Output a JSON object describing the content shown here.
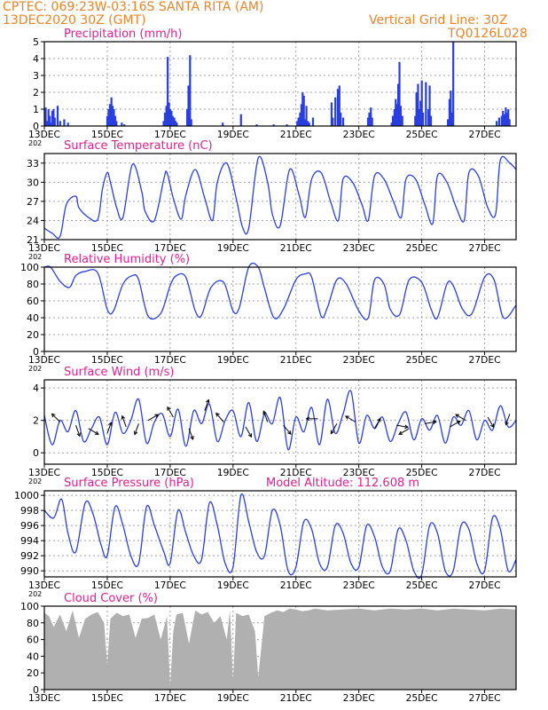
{
  "header": {
    "line1_left": "CPTEC:   069:23W-03:16S   SANTA RITA (AM)",
    "line2_left": "13DEC2020 30Z (GMT)",
    "line1_right": "Vertical Grid Line: 30Z",
    "line2_right": "TQ0126L028"
  },
  "colors": {
    "series": "#2a3fe0",
    "title": "#e0208f",
    "header": "#e8842a",
    "cloud": "#b0b0b0",
    "grid": "#a0a0a0"
  },
  "x_ticks": [
    "13DEC",
    "15DEC",
    "17DEC",
    "19DEC",
    "21DEC",
    "23DEC",
    "25DEC",
    "27DEC"
  ],
  "x_tick_days": [
    0,
    2,
    4,
    6,
    8,
    10,
    12,
    14
  ],
  "x_range_days": [
    0,
    15
  ],
  "year_label": "202",
  "chart_data": [
    {
      "id": "precip",
      "type": "bar",
      "title": "Precipitation (mm/h)",
      "ylim": [
        0,
        5
      ],
      "yticks": [
        0,
        1,
        2,
        3,
        4,
        5
      ],
      "grid": true,
      "x": [
        0.04,
        0.08,
        0.13,
        0.17,
        0.21,
        0.25,
        0.29,
        0.33,
        0.42,
        0.5,
        0.63,
        0.75,
        2.0,
        2.04,
        2.08,
        2.13,
        2.17,
        2.21,
        2.25,
        2.29,
        2.46,
        2.54,
        3.79,
        3.83,
        3.88,
        3.92,
        3.96,
        4.0,
        4.04,
        4.08,
        4.13,
        4.17,
        4.21,
        4.54,
        4.58,
        4.63,
        4.67,
        5.67,
        6.25,
        6.75,
        7.29,
        7.71,
        8.04,
        8.08,
        8.13,
        8.17,
        8.21,
        8.25,
        8.29,
        8.33,
        8.38,
        8.42,
        8.54,
        9.13,
        9.17,
        9.25,
        9.33,
        9.38,
        9.42,
        9.5,
        10.29,
        10.33,
        10.38,
        10.42,
        11.04,
        11.08,
        11.13,
        11.17,
        11.21,
        11.25,
        11.29,
        11.33,
        11.38,
        11.79,
        11.83,
        11.88,
        11.92,
        11.96,
        12.0,
        12.04,
        12.13,
        12.21,
        12.25,
        12.29,
        12.83,
        12.88,
        12.92,
        12.96,
        13.0,
        14.38,
        14.46,
        14.54,
        14.58,
        14.63,
        14.67,
        14.71,
        14.75,
        14.79
      ],
      "values": [
        1.1,
        0.3,
        1.0,
        0.6,
        0.2,
        0.9,
        1.0,
        0.5,
        1.2,
        0.3,
        0.4,
        0.2,
        0.6,
        1.0,
        1.3,
        1.7,
        1.2,
        1.0,
        0.6,
        0.3,
        0.2,
        0.1,
        0.3,
        0.8,
        1.2,
        4.1,
        1.4,
        1.0,
        0.9,
        0.6,
        0.5,
        0.3,
        0.2,
        1.0,
        2.4,
        4.2,
        0.4,
        0.2,
        0.7,
        0.1,
        0.1,
        0.1,
        0.3,
        0.5,
        0.8,
        1.3,
        2.0,
        1.8,
        0.4,
        1.2,
        0.3,
        0.2,
        0.5,
        1.4,
        0.5,
        1.7,
        2.2,
        2.4,
        0.8,
        0.5,
        0.5,
        0.8,
        1.1,
        0.5,
        0.2,
        0.6,
        1.0,
        1.6,
        1.3,
        2.5,
        3.8,
        1.2,
        0.6,
        0.6,
        2.0,
        2.5,
        1.0,
        1.5,
        2.7,
        0.8,
        2.6,
        1.0,
        2.4,
        0.6,
        0.4,
        1.6,
        2.1,
        0.8,
        5.1,
        0.3,
        0.5,
        0.6,
        0.9,
        0.7,
        1.1,
        0.8,
        1.0,
        0.4
      ]
    },
    {
      "id": "temp",
      "type": "line",
      "title": "Surface Temperature (nC)",
      "ylim": [
        21,
        34.5
      ],
      "yticks": [
        21,
        24,
        27,
        30,
        33
      ],
      "grid": true,
      "x": [
        0,
        0.25,
        0.5,
        0.7,
        1.0,
        1.1,
        1.4,
        1.7,
        1.85,
        2.0,
        2.1,
        2.3,
        2.5,
        2.8,
        3.1,
        3.2,
        3.5,
        3.8,
        3.9,
        4.1,
        4.35,
        4.5,
        4.8,
        5.1,
        5.35,
        5.5,
        5.8,
        6.1,
        6.3,
        6.5,
        6.8,
        7.1,
        7.25,
        7.5,
        7.8,
        8.1,
        8.3,
        8.5,
        8.8,
        9.1,
        9.35,
        9.5,
        9.8,
        10.1,
        10.3,
        10.5,
        10.8,
        11.1,
        11.35,
        11.5,
        11.8,
        12.1,
        12.35,
        12.5,
        12.8,
        13.1,
        13.35,
        13.5,
        13.8,
        14.1,
        14.35,
        14.5,
        14.8,
        15.0
      ],
      "values": [
        22.8,
        22.0,
        21.5,
        26.5,
        27.8,
        26.0,
        24.5,
        24.2,
        29.0,
        31.5,
        30.0,
        26.0,
        24.5,
        32.8,
        28.5,
        25.5,
        24.0,
        30.5,
        31.5,
        27.5,
        24.2,
        28.0,
        32.0,
        27.5,
        24.0,
        30.0,
        33.0,
        27.5,
        23.0,
        22.8,
        33.8,
        30.0,
        25.0,
        23.2,
        32.0,
        28.0,
        24.5,
        30.5,
        31.5,
        27.0,
        24.0,
        30.5,
        30.0,
        26.5,
        24.0,
        31.0,
        30.5,
        27.0,
        24.5,
        30.5,
        30.5,
        26.5,
        23.5,
        31.0,
        30.0,
        26.0,
        24.0,
        31.5,
        31.0,
        26.0,
        25.0,
        33.5,
        33.0,
        32.0
      ]
    },
    {
      "id": "rh",
      "type": "line",
      "title": "Relative Humidity (%)",
      "ylim": [
        0,
        100
      ],
      "yticks": [
        0,
        20,
        40,
        60,
        80,
        100
      ],
      "grid": true,
      "x": [
        0,
        0.2,
        0.5,
        0.8,
        1.0,
        1.3,
        1.7,
        2.0,
        2.2,
        2.5,
        2.8,
        3.0,
        3.3,
        3.7,
        4.0,
        4.2,
        4.5,
        4.8,
        5.0,
        5.3,
        5.7,
        6.0,
        6.2,
        6.5,
        6.8,
        7.0,
        7.3,
        7.6,
        8.0,
        8.3,
        8.5,
        8.8,
        9.0,
        9.3,
        9.6,
        10.0,
        10.3,
        10.5,
        10.8,
        11.0,
        11.3,
        11.6,
        12.0,
        12.3,
        12.5,
        12.8,
        13.0,
        13.3,
        13.6,
        14.0,
        14.3,
        14.6,
        15.0
      ],
      "values": [
        100,
        100,
        83,
        76,
        90,
        95,
        93,
        50,
        48,
        80,
        90,
        85,
        42,
        45,
        78,
        90,
        88,
        48,
        43,
        76,
        82,
        48,
        52,
        100,
        100,
        75,
        40,
        50,
        85,
        92,
        88,
        42,
        52,
        85,
        80,
        48,
        40,
        85,
        80,
        50,
        44,
        85,
        82,
        50,
        40,
        80,
        78,
        50,
        45,
        88,
        85,
        40,
        55
      ]
    },
    {
      "id": "wind",
      "type": "line",
      "title": "Surface Wind (m/s)",
      "ylim": [
        -0.7,
        4.5
      ],
      "yticks": [
        0,
        2,
        4
      ],
      "grid": true,
      "x": [
        0,
        0.25,
        0.5,
        0.75,
        1.0,
        1.25,
        1.5,
        1.75,
        2.0,
        2.25,
        2.5,
        2.75,
        3.0,
        3.25,
        3.5,
        3.75,
        4.0,
        4.25,
        4.5,
        4.75,
        5.0,
        5.25,
        5.5,
        5.75,
        6.0,
        6.25,
        6.5,
        6.75,
        7.0,
        7.25,
        7.5,
        7.75,
        8.0,
        8.25,
        8.5,
        8.75,
        9.0,
        9.25,
        9.5,
        9.75,
        10.0,
        10.25,
        10.5,
        10.75,
        11.0,
        11.25,
        11.5,
        11.75,
        12.0,
        12.25,
        12.5,
        12.75,
        13.0,
        13.25,
        13.5,
        13.75,
        14.0,
        14.25,
        14.5,
        14.75,
        15.0
      ],
      "values": [
        2.3,
        0.5,
        2.0,
        1.3,
        2.6,
        0.7,
        1.5,
        2.2,
        0.5,
        2.5,
        1.2,
        2.0,
        3.3,
        0.6,
        1.9,
        2.4,
        1.0,
        2.7,
        0.4,
        2.6,
        1.8,
        3.0,
        0.7,
        2.0,
        2.6,
        1.0,
        3.1,
        0.7,
        2.4,
        1.8,
        3.4,
        0.2,
        2.2,
        1.3,
        2.8,
        0.5,
        3.3,
        1.2,
        2.4,
        3.8,
        0.6,
        2.3,
        1.5,
        2.2,
        0.7,
        1.8,
        2.5,
        0.8,
        2.1,
        1.4,
        2.3,
        0.6,
        2.2,
        1.7,
        2.6,
        0.8,
        2.0,
        1.4,
        2.9,
        1.6,
        2.0
      ],
      "arrows": [
        {
          "x": 0.5,
          "y": 1.9,
          "dir": 315
        },
        {
          "x": 1.0,
          "y": 1.7,
          "dir": 160
        },
        {
          "x": 1.4,
          "y": 1.5,
          "dir": 120
        },
        {
          "x": 2.0,
          "y": 1.2,
          "dir": 20
        },
        {
          "x": 2.6,
          "y": 1.6,
          "dir": 340
        },
        {
          "x": 3.0,
          "y": 1.8,
          "dir": 200
        },
        {
          "x": 3.3,
          "y": 2.0,
          "dir": 60
        },
        {
          "x": 4.1,
          "y": 2.2,
          "dir": 330
        },
        {
          "x": 4.6,
          "y": 1.5,
          "dir": 160
        },
        {
          "x": 5.1,
          "y": 2.6,
          "dir": 20
        },
        {
          "x": 5.7,
          "y": 1.9,
          "dir": 320
        },
        {
          "x": 6.4,
          "y": 1.6,
          "dir": 150
        },
        {
          "x": 7.1,
          "y": 1.9,
          "dir": 340
        },
        {
          "x": 7.6,
          "y": 1.7,
          "dir": 140
        },
        {
          "x": 8.7,
          "y": 2.1,
          "dir": 270
        },
        {
          "x": 9.3,
          "y": 1.8,
          "dir": 210
        },
        {
          "x": 9.9,
          "y": 1.9,
          "dir": 300
        },
        {
          "x": 10.5,
          "y": 1.5,
          "dir": 30
        },
        {
          "x": 11.2,
          "y": 1.7,
          "dir": 100
        },
        {
          "x": 11.6,
          "y": 1.5,
          "dir": 240
        },
        {
          "x": 12.1,
          "y": 1.8,
          "dir": 80
        },
        {
          "x": 12.9,
          "y": 1.6,
          "dir": 60
        },
        {
          "x": 13.4,
          "y": 2.0,
          "dir": 300
        },
        {
          "x": 14.1,
          "y": 2.2,
          "dir": 150
        },
        {
          "x": 14.8,
          "y": 2.4,
          "dir": 200
        }
      ]
    },
    {
      "id": "pres",
      "type": "line",
      "title": "Surface Pressure (hPa)",
      "ylim": [
        989.2,
        1000.6
      ],
      "yticks": [
        990,
        992,
        994,
        996,
        998,
        1000
      ],
      "grid": true,
      "x": [
        0,
        0.3,
        0.55,
        0.75,
        1.0,
        1.3,
        1.55,
        1.8,
        2.0,
        2.25,
        2.5,
        2.75,
        3.0,
        3.25,
        3.5,
        3.8,
        4.0,
        4.25,
        4.5,
        4.75,
        5.0,
        5.25,
        5.5,
        5.75,
        6.0,
        6.25,
        6.5,
        6.75,
        7.0,
        7.25,
        7.5,
        7.75,
        8.0,
        8.25,
        8.5,
        8.75,
        9.0,
        9.25,
        9.5,
        9.75,
        10.0,
        10.25,
        10.5,
        10.75,
        11.0,
        11.25,
        11.5,
        11.75,
        12.0,
        12.25,
        12.5,
        12.75,
        13.0,
        13.25,
        13.5,
        13.75,
        14.0,
        14.25,
        14.5,
        14.75,
        15.0
      ],
      "values": [
        998.0,
        997.0,
        999.5,
        995.0,
        992.5,
        999.0,
        997.5,
        993.5,
        992.0,
        998.5,
        996.0,
        992.0,
        991.0,
        998.5,
        996.0,
        992.5,
        991.0,
        998.0,
        995.0,
        992.0,
        991.5,
        999.0,
        996.0,
        991.0,
        990.5,
        1000.0,
        996.5,
        992.5,
        992.0,
        998.0,
        996.0,
        990.0,
        990.5,
        996.5,
        995.5,
        991.0,
        990.5,
        996.0,
        995.0,
        991.0,
        990.5,
        996.0,
        994.5,
        990.5,
        990.0,
        995.5,
        994.0,
        990.0,
        989.5,
        996.0,
        995.0,
        990.0,
        990.0,
        996.0,
        995.5,
        991.0,
        990.0,
        997.0,
        995.5,
        990.0,
        991.5
      ],
      "annotation": "Model Altitude: 112.608 m"
    },
    {
      "id": "cloud",
      "type": "area",
      "title": "Cloud Cover (%)",
      "ylim": [
        0,
        100
      ],
      "yticks": [
        0,
        20,
        40,
        60,
        80,
        100
      ],
      "grid": true,
      "x": [
        0,
        0.15,
        0.3,
        0.5,
        0.7,
        0.9,
        1.1,
        1.3,
        1.5,
        1.7,
        1.9,
        2.0,
        2.1,
        2.3,
        2.5,
        2.7,
        2.9,
        3.1,
        3.3,
        3.5,
        3.7,
        3.9,
        4.0,
        4.1,
        4.2,
        4.4,
        4.6,
        4.8,
        5.0,
        5.2,
        5.4,
        5.6,
        5.8,
        5.9,
        6.0,
        6.1,
        6.3,
        6.5,
        6.7,
        6.8,
        7.0,
        7.2,
        7.4,
        7.6,
        7.8,
        8.0,
        8.2,
        8.4,
        8.6,
        8.8,
        9.0,
        9.5,
        10.0,
        10.5,
        11.0,
        11.5,
        12.0,
        12.5,
        13.0,
        13.5,
        14.0,
        14.5,
        15.0
      ],
      "values": [
        92,
        88,
        75,
        90,
        70,
        95,
        62,
        85,
        90,
        93,
        80,
        30,
        85,
        92,
        88,
        90,
        62,
        85,
        86,
        90,
        60,
        88,
        4,
        70,
        90,
        92,
        55,
        95,
        90,
        93,
        80,
        88,
        60,
        95,
        10,
        92,
        88,
        90,
        70,
        15,
        88,
        92,
        95,
        93,
        97,
        96,
        94,
        95,
        97,
        96,
        95,
        96,
        97,
        95,
        97,
        96,
        97,
        95,
        97,
        96,
        95,
        97,
        96
      ]
    }
  ]
}
